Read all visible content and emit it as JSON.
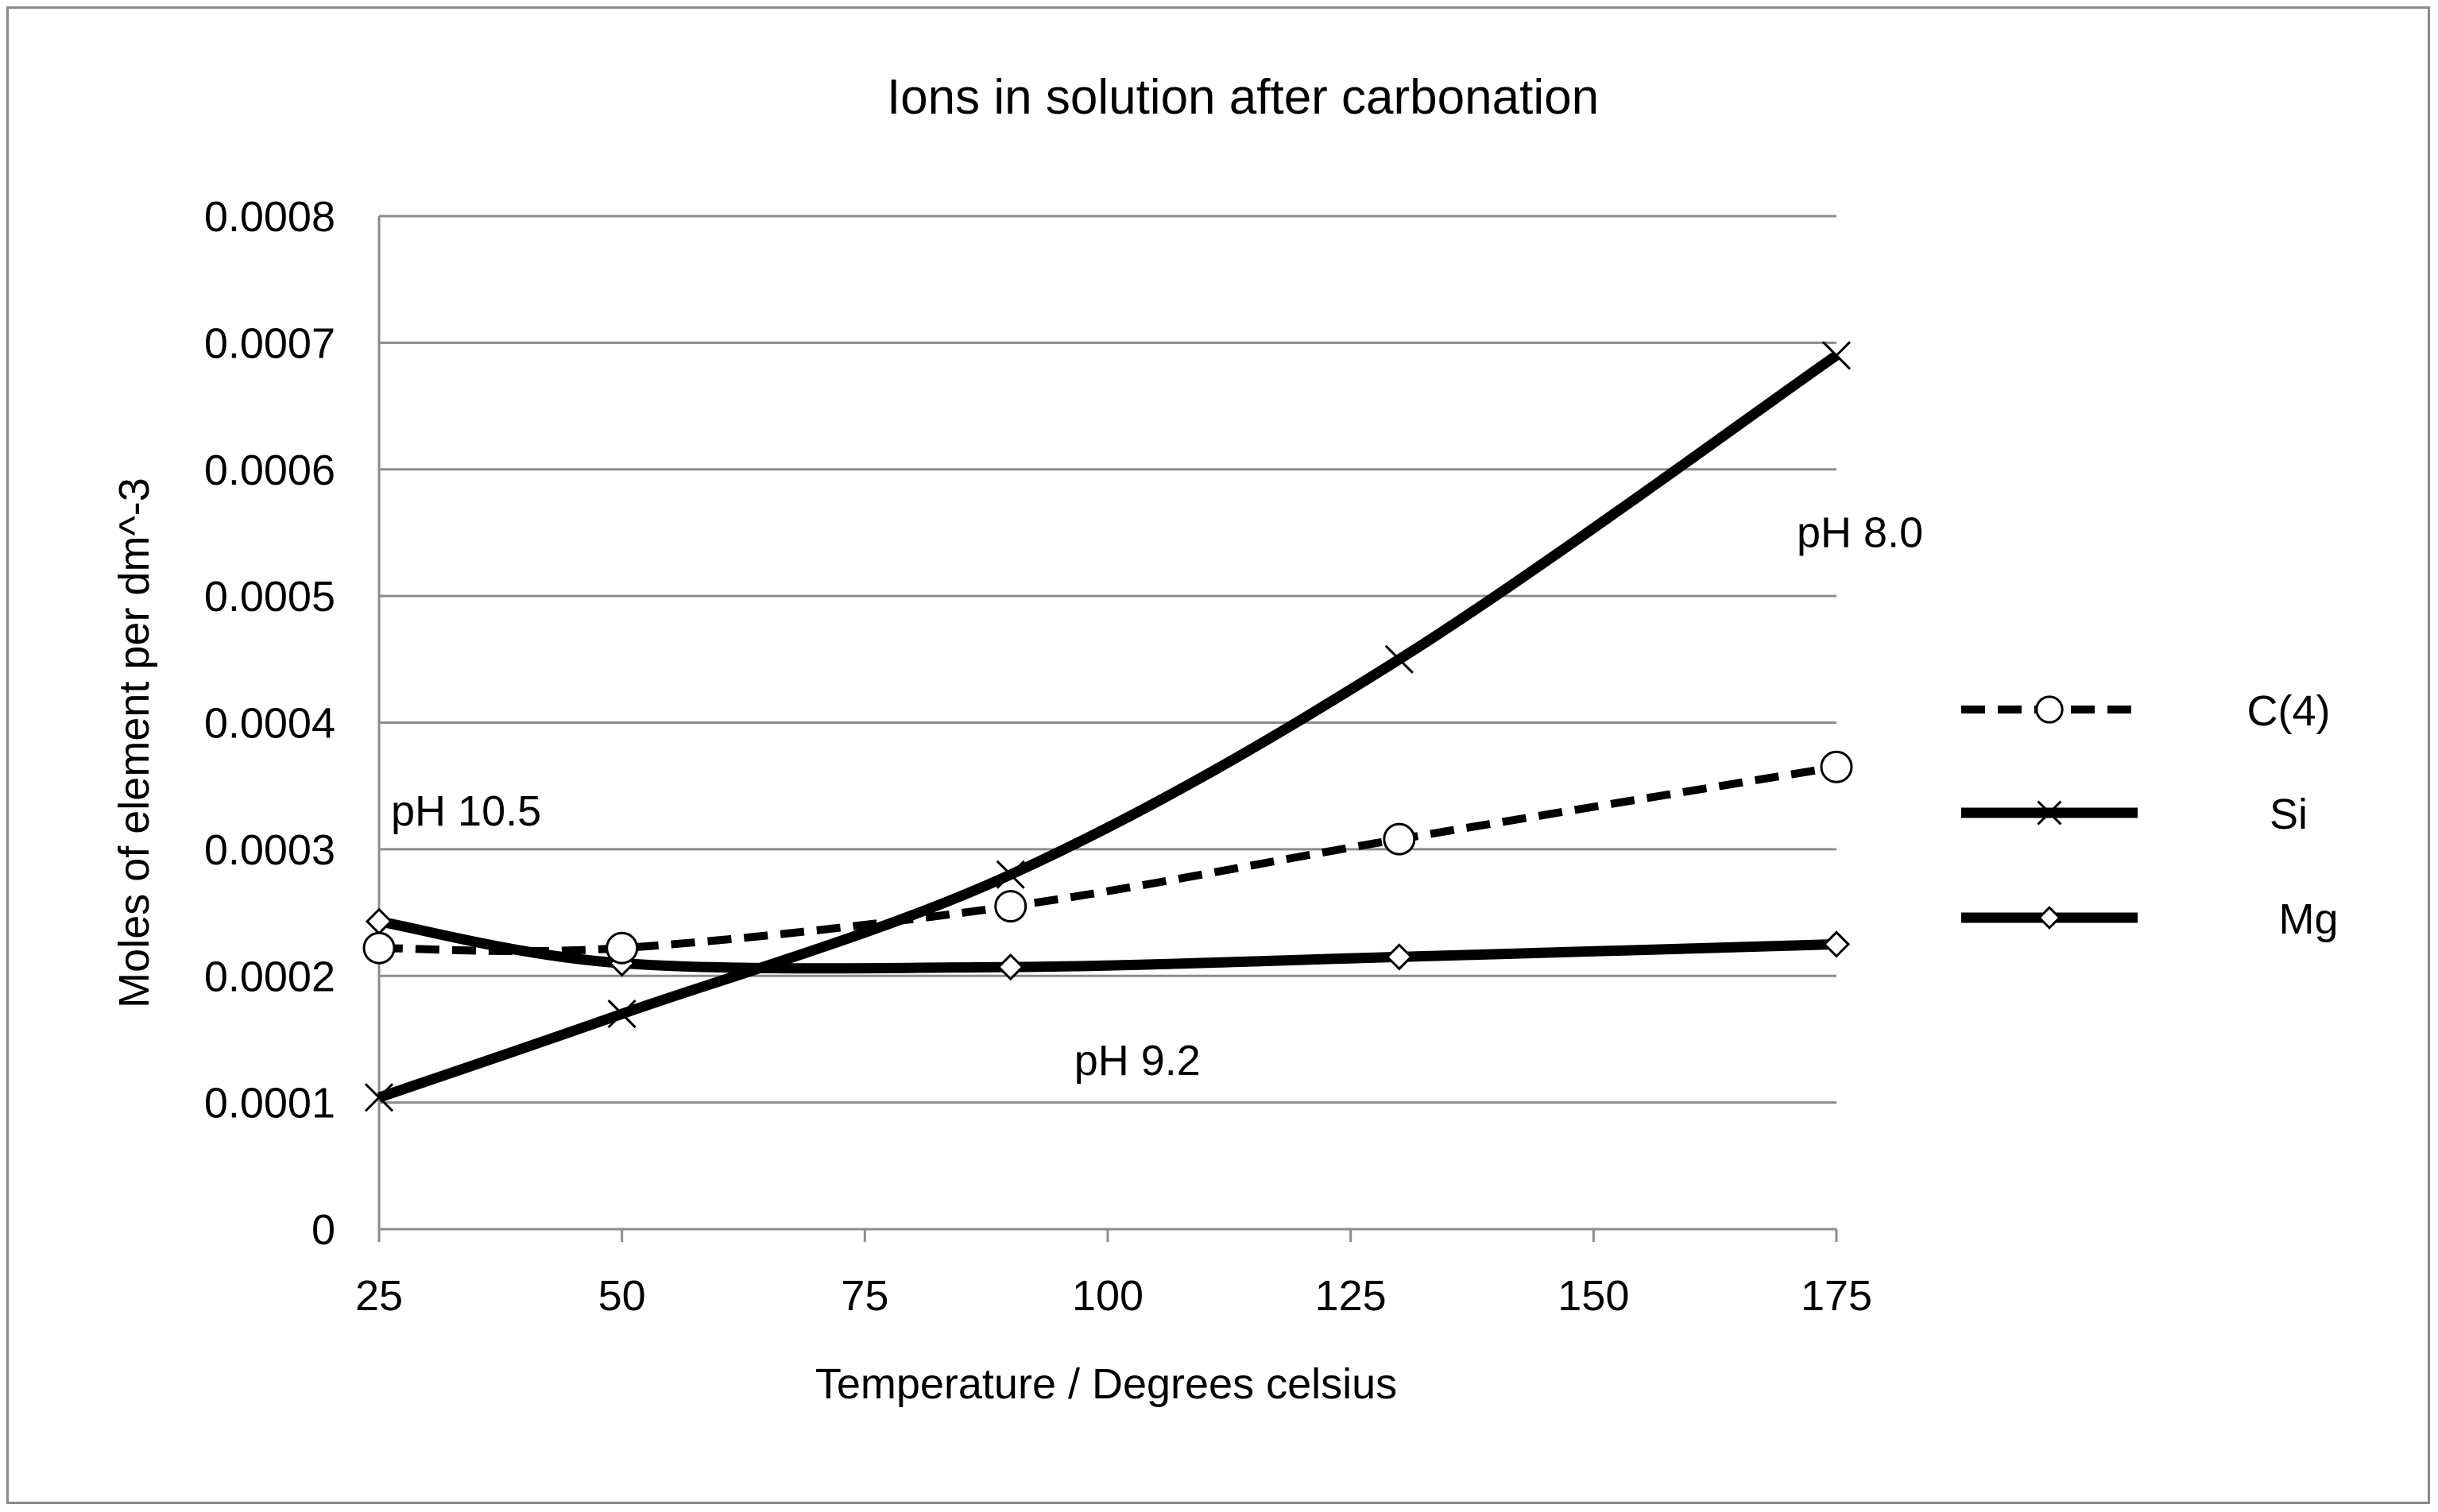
{
  "chart_data": {
    "type": "line",
    "title": "Ions in solution after carbonation",
    "xlabel": "Temperature / Degrees celsius",
    "ylabel": "Moles of element per dm^-3",
    "xlim": [
      25,
      175
    ],
    "ylim": [
      0,
      0.0008
    ],
    "xticks": [
      25,
      50,
      75,
      100,
      125,
      150,
      175
    ],
    "xtick_labels": [
      "25",
      "50",
      "75",
      "100",
      "125",
      "150",
      "175"
    ],
    "yticks": [
      0,
      0.0001,
      0.0002,
      0.0003,
      0.0004,
      0.0005,
      0.0006,
      0.0007,
      0.0008
    ],
    "ytick_labels": [
      "0",
      "0.0001",
      "0.0002",
      "0.0003",
      "0.0004",
      "0.0005",
      "0.0006",
      "0.0007",
      "0.0008"
    ],
    "grid": true,
    "legend_position": "right",
    "series": [
      {
        "name": "C(4)",
        "marker": "circle",
        "dash": true,
        "x": [
          25,
          50,
          90,
          130,
          175
        ],
        "values": [
          0.000222,
          0.000222,
          0.000255,
          0.000308,
          0.000365
        ]
      },
      {
        "name": "Si",
        "marker": "x",
        "dash": false,
        "x": [
          25,
          50,
          90,
          130,
          175
        ],
        "values": [
          0.000104,
          0.00017,
          0.00028,
          0.00045,
          0.00069
        ]
      },
      {
        "name": "Mg",
        "marker": "diamond",
        "dash": false,
        "x": [
          25,
          50,
          90,
          130,
          175
        ],
        "values": [
          0.000243,
          0.00021,
          0.000207,
          0.000215,
          0.000225
        ]
      }
    ],
    "annotations": [
      {
        "text": "pH 10.5",
        "x": 25,
        "y": 0.00033
      },
      {
        "text": "pH 9.2",
        "x": 90,
        "y": 0.000133
      },
      {
        "text": "pH 8.0",
        "x": 175,
        "y": 0.00055
      }
    ]
  }
}
